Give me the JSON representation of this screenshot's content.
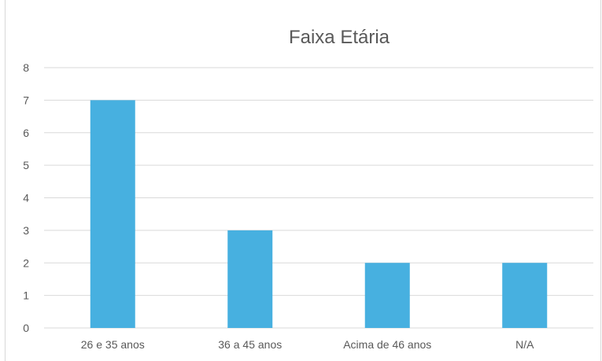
{
  "chart_data": {
    "type": "bar",
    "title": "Faixa Etária",
    "categories": [
      "26 e 35 anos",
      "36 a 45 anos",
      "Acima de 46 anos",
      "N/A"
    ],
    "values": [
      7,
      3,
      2,
      2
    ],
    "ylim": [
      0,
      8
    ],
    "yticks": [
      "0",
      "1",
      "2",
      "3",
      "4",
      "5",
      "6",
      "7",
      "8"
    ],
    "grid": true,
    "legend": "none",
    "colors": {
      "bar": "#47b0e0",
      "grid": "#d9d9d9",
      "text": "#595959"
    }
  }
}
